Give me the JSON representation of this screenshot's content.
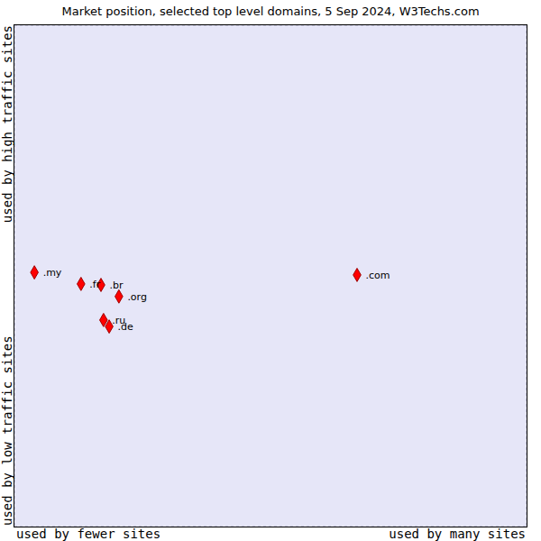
{
  "chart_data": {
    "type": "scatter",
    "title": "Market position, selected top level domains, 5 Sep 2024, W3Techs.com",
    "axis_labels": {
      "x_low": "used by fewer sites",
      "x_high": "used by many sites",
      "y_low": "used by low traffic sites",
      "y_high": "used by high traffic sites"
    },
    "labels": [
      ".my",
      ".fr",
      ".br",
      ".org",
      ".ru",
      ".de",
      ".com"
    ],
    "x": [
      0.39,
      1.3,
      1.69,
      2.04,
      1.74,
      1.85,
      6.69
    ],
    "values": [
      5.07,
      4.84,
      4.82,
      4.59,
      4.12,
      3.99,
      5.02
    ],
    "color": "#ff0000",
    "marker": "diamond",
    "xlim": [
      0,
      10
    ],
    "ylim": [
      0,
      10
    ],
    "xticks": [
      0,
      1,
      2,
      3,
      4,
      5,
      6,
      7,
      8,
      9,
      10
    ],
    "yticks": [
      0,
      1,
      2,
      3,
      4,
      5,
      6,
      7,
      8,
      9,
      10
    ],
    "grid": true,
    "tick_labels": false
  }
}
